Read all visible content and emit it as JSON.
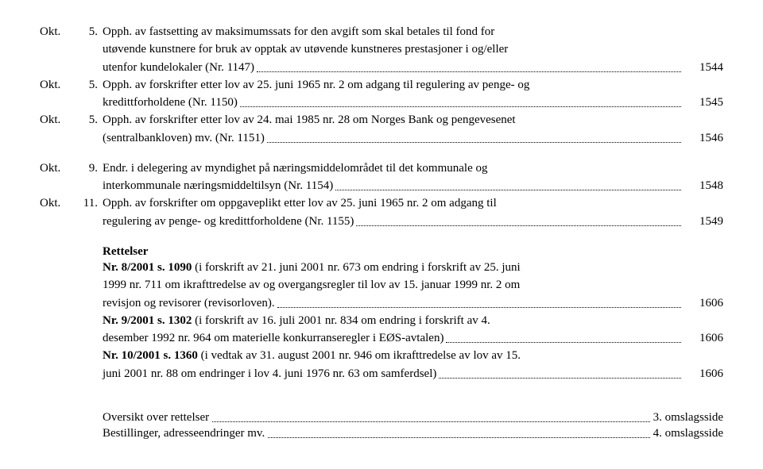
{
  "entries1": [
    {
      "month": "Okt.",
      "num": "5.",
      "lines": [
        "Opph. av fastsetting av maksimumssats for den avgift som skal betales til fond for",
        "utøvende kunstnere for bruk av opptak av utøvende kunstneres prestasjoner i og/eller"
      ],
      "last": "utenfor kundelokaler (Nr. 1147)",
      "page": "1544"
    },
    {
      "month": "Okt.",
      "num": "5.",
      "lines": [
        "Opph. av forskrifter etter lov av 25. juni 1965 nr. 2 om adgang til regulering av penge- og"
      ],
      "last": "kredittforholdene (Nr. 1150)",
      "page": "1545"
    },
    {
      "month": "Okt.",
      "num": "5.",
      "lines": [
        "Opph. av forskrifter etter lov av 24. mai 1985 nr. 28 om Norges Bank og pengevesenet"
      ],
      "last": "(sentralbankloven) mv. (Nr. 1151)",
      "page": "1546"
    }
  ],
  "entries2": [
    {
      "month": "Okt.",
      "num": "9.",
      "lines": [
        "Endr. i delegering av myndighet på næringsmiddelområdet til det kommunale og"
      ],
      "last": "interkommunale næringsmiddeltilsyn (Nr. 1154)",
      "page": "1548"
    },
    {
      "month": "Okt.",
      "num": "11.",
      "lines": [
        "Opph. av forskrifter om oppgaveplikt etter lov av 25. juni 1965 nr. 2 om adgang til"
      ],
      "last": "regulering av penge- og kredittforholdene (Nr. 1155)",
      "page": "1549"
    }
  ],
  "rettelser_title": "Rettelser",
  "rettelser": [
    {
      "lines": [
        "Nr. 8/2001 s. 1090 (i forskrift av 21. juni 2001 nr. 673 om endring i forskrift av 25. juni",
        "1999 nr. 711 om ikrafttredelse av og overgangsregler til lov av 15. januar 1999 nr. 2 om"
      ],
      "boldpart": "Nr. 8/2001 s. 1090",
      "last": "revisjon og revisorer (revisorloven).",
      "page": "1606"
    },
    {
      "lines": [
        "Nr. 9/2001 s. 1302 (i forskrift av 16. juli 2001 nr. 834 om endring i forskrift av 4."
      ],
      "boldpart": "Nr. 9/2001 s. 1302",
      "last": "desember 1992 nr. 964 om materielle konkurranseregler i EØS-avtalen)",
      "page": "1606"
    },
    {
      "lines": [
        "Nr. 10/2001 s. 1360 (i vedtak av 31. august 2001 nr. 946 om ikrafttredelse av lov av 15."
      ],
      "boldpart": "Nr. 10/2001 s. 1360",
      "last": "juni 2001 nr. 88 om endringer i lov 4. juni 1976 nr. 63 om samferdsel)",
      "page": "1606"
    }
  ],
  "overview": [
    {
      "text": "Oversikt over rettelser",
      "page": "3. omslagsside"
    },
    {
      "text": "Bestillinger, adresseendringer mv.",
      "page": "4. omslagsside"
    }
  ]
}
